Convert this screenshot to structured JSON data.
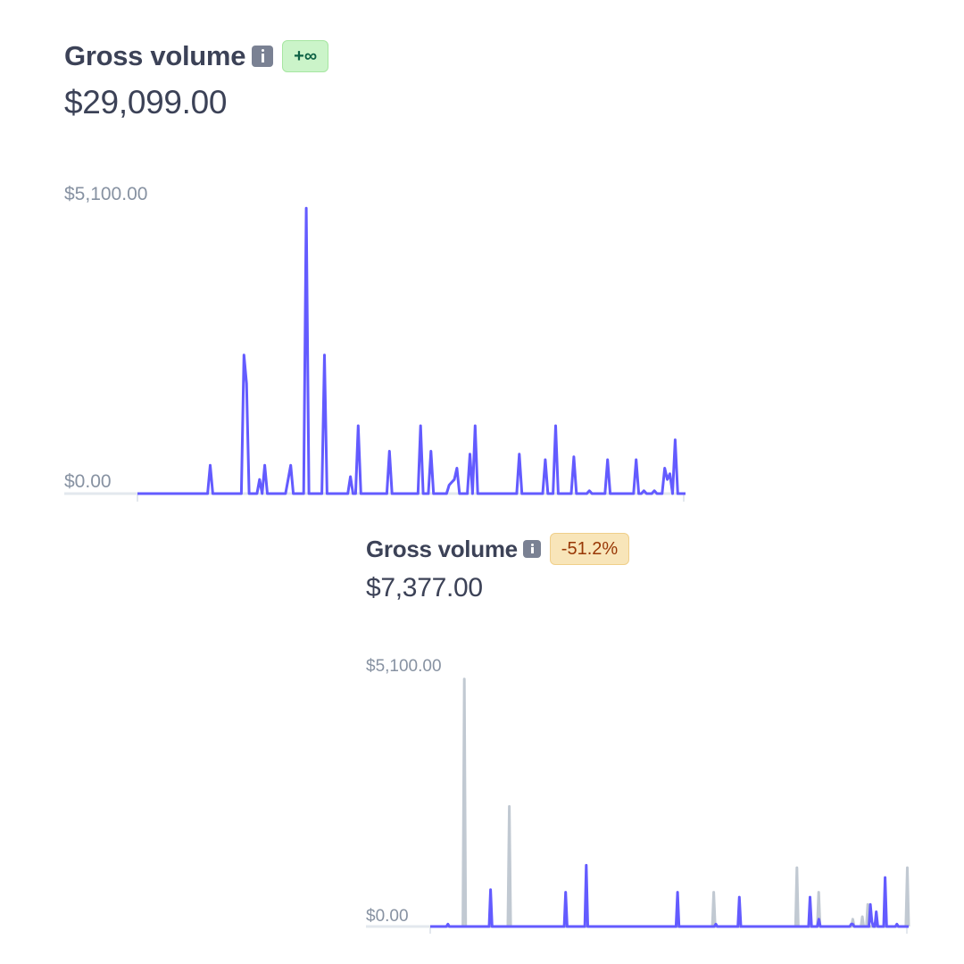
{
  "charts": [
    {
      "title": "Gross volume",
      "badge": "+∞",
      "amount": "$29,099.00",
      "y_max_label": "$5,100.00",
      "y_min_label": "$0.00"
    },
    {
      "title": "Gross volume",
      "badge": "-51.2%",
      "amount": "$7,377.00",
      "y_max_label": "$5,100.00",
      "y_min_label": "$0.00"
    }
  ],
  "colors": {
    "current": "#635bff",
    "previous": "#c1c9d2",
    "axis": "#e3e8ee"
  },
  "chart_data": [
    {
      "type": "line",
      "ylim": [
        0,
        5100
      ],
      "yticks": [
        "$0.00",
        "$5,100.00"
      ],
      "grid": false,
      "series": [
        {
          "values": [
            0,
            0,
            0,
            0,
            0,
            0,
            0,
            0,
            0,
            0,
            0,
            0,
            0,
            0,
            0,
            0,
            0,
            0,
            0,
            0,
            0,
            0,
            0,
            0,
            0,
            0,
            0,
            0,
            500,
            0,
            0,
            0,
            0,
            0,
            0,
            0,
            0,
            0,
            0,
            0,
            0,
            2450,
            1950,
            0,
            0,
            0,
            0,
            250,
            0,
            500,
            0,
            0,
            0,
            0,
            0,
            0,
            0,
            0,
            250,
            500,
            0,
            0,
            0,
            0,
            0,
            5050,
            0,
            0,
            0,
            0,
            0,
            0,
            2450,
            0,
            0,
            0,
            0,
            0,
            0,
            0,
            0,
            0,
            300,
            0,
            0,
            1200,
            0,
            0,
            0,
            0,
            0,
            0,
            0,
            0,
            0,
            0,
            0,
            750,
            0,
            0,
            0,
            0,
            0,
            0,
            0,
            0,
            0,
            0,
            0,
            1200,
            0,
            0,
            0,
            750,
            0,
            0,
            0,
            0,
            0,
            0,
            150,
            200,
            250,
            450,
            0,
            0,
            0,
            0,
            700,
            0,
            1200,
            0,
            0,
            0,
            0,
            0,
            0,
            0,
            0,
            0,
            0,
            0,
            0,
            0,
            0,
            0,
            0,
            700,
            0,
            0,
            0,
            0,
            0,
            0,
            0,
            0,
            0,
            600,
            0,
            0,
            0,
            1200,
            0,
            0,
            0,
            0,
            0,
            0,
            650,
            0,
            0,
            0,
            0,
            0,
            50,
            0,
            0,
            0,
            0,
            0,
            0,
            600,
            0,
            0,
            0,
            0,
            0,
            0,
            0,
            0,
            0,
            0,
            600,
            0,
            0,
            50,
            0,
            0,
            0,
            50,
            0,
            0,
            0,
            450,
            250,
            350,
            0,
            950,
            0,
            0,
            0,
            0
          ]
        }
      ]
    },
    {
      "type": "line",
      "ylim": [
        0,
        5100
      ],
      "yticks": [
        "$0.00",
        "$5,100.00"
      ],
      "grid": false,
      "series": [
        {
          "values": [
            0,
            0,
            0,
            0,
            0,
            0,
            0,
            0,
            0,
            0,
            0,
            0,
            50,
            0,
            0,
            0,
            0,
            0,
            0,
            0,
            0,
            0,
            0,
            0,
            0,
            0,
            0,
            0,
            0,
            0,
            0,
            0,
            0,
            0,
            0,
            0,
            0,
            0,
            0,
            0,
            0,
            750,
            0,
            0,
            0,
            0,
            0,
            0,
            0,
            0,
            0,
            0,
            0,
            0,
            0,
            0,
            0,
            0,
            0,
            0,
            0,
            0,
            0,
            0,
            0,
            0,
            0,
            0,
            0,
            0,
            0,
            0,
            0,
            0,
            0,
            0,
            0,
            0,
            0,
            0,
            0,
            0,
            0,
            0,
            0,
            0,
            0,
            0,
            0,
            0,
            0,
            0,
            700,
            0,
            0,
            0,
            0,
            0,
            0,
            0,
            0,
            0,
            0,
            0,
            0,
            0,
            1250,
            0,
            0,
            0,
            0,
            0,
            0,
            0,
            0,
            0,
            0,
            0,
            0,
            0,
            0,
            0,
            0,
            0,
            0,
            0,
            0,
            0,
            0,
            0,
            0,
            0,
            0,
            0,
            0,
            0,
            0,
            0,
            0,
            0,
            0,
            0,
            0,
            0,
            0,
            0,
            0,
            0,
            0,
            0,
            0,
            0,
            0,
            0,
            0,
            0,
            0,
            0,
            0,
            0,
            0,
            0,
            0,
            0,
            0,
            0,
            0,
            0,
            700,
            0,
            0,
            0,
            0,
            0,
            0,
            0,
            0,
            0,
            0,
            0,
            0,
            0,
            0,
            0,
            0,
            0,
            0,
            0,
            0,
            0,
            0,
            0,
            0,
            0,
            50,
            0,
            0,
            0,
            0,
            0,
            0,
            0,
            0,
            0,
            0,
            0,
            0,
            0,
            0,
            0,
            600,
            0,
            0,
            0,
            0,
            0,
            0,
            0,
            0,
            0,
            0,
            0,
            0,
            0,
            0,
            0,
            0,
            0,
            0,
            0,
            0,
            0,
            0,
            0,
            0,
            0,
            0,
            0,
            0,
            0,
            0,
            0,
            0,
            0,
            0,
            0,
            0,
            0,
            0,
            0,
            0,
            0,
            0,
            0,
            0,
            0,
            0,
            0,
            600,
            0,
            0,
            0,
            0,
            0,
            150,
            0,
            0,
            0,
            0,
            0,
            0,
            0,
            0,
            0,
            0,
            0,
            0,
            0,
            0,
            0,
            0,
            0,
            0,
            0,
            0,
            0,
            50,
            50,
            0,
            0,
            0,
            0,
            0,
            0,
            0,
            0,
            0,
            0,
            0,
            450,
            100,
            0,
            0,
            300,
            0,
            0,
            0,
            0,
            0,
            1000,
            0,
            0,
            0,
            0,
            0,
            0,
            0,
            50,
            0,
            0,
            0,
            0,
            0,
            0,
            0,
            0
          ]
        },
        {
          "values": [
            0,
            0,
            0,
            0,
            0,
            0,
            0,
            0,
            0,
            0,
            0,
            0,
            0,
            0,
            0,
            0,
            0,
            0,
            0,
            0,
            0,
            0,
            0,
            0,
            0,
            5050,
            0,
            0,
            0,
            0,
            0,
            0,
            0,
            0,
            0,
            0,
            0,
            0,
            0,
            0,
            0,
            0,
            0,
            0,
            0,
            0,
            0,
            0,
            0,
            0,
            0,
            0,
            0,
            0,
            0,
            0,
            0,
            0,
            2450,
            0,
            0,
            0,
            0,
            0,
            0,
            0,
            0,
            0,
            0,
            0,
            0,
            0,
            0,
            0,
            0,
            0,
            0,
            0,
            0,
            0,
            0,
            0,
            0,
            0,
            0,
            0,
            0,
            0,
            0,
            0,
            0,
            0,
            0,
            0,
            0,
            0,
            0,
            0,
            0,
            0,
            0,
            0,
            0,
            0,
            0,
            0,
            0,
            0,
            0,
            0,
            0,
            0,
            0,
            0,
            0,
            0,
            0,
            0,
            0,
            0,
            0,
            0,
            0,
            0,
            0,
            0,
            0,
            0,
            0,
            0,
            0,
            0,
            0,
            0,
            0,
            0,
            0,
            0,
            0,
            0,
            0,
            0,
            0,
            0,
            0,
            0,
            0,
            0,
            0,
            0,
            0,
            0,
            0,
            0,
            0,
            0,
            0,
            0,
            0,
            0,
            0,
            0,
            0,
            0,
            0,
            0,
            0,
            0,
            0,
            0,
            0,
            0,
            0,
            0,
            0,
            0,
            0,
            0,
            0,
            0,
            0,
            0,
            0,
            0,
            0,
            0,
            0,
            0,
            0,
            0,
            0,
            0,
            0,
            0,
            0,
            0,
            0,
            0,
            0,
            0,
            0,
            0,
            0,
            0,
            0,
            0,
            0,
            0,
            700,
            0,
            0,
            0,
            0,
            0,
            0,
            0,
            0,
            0,
            0,
            0,
            0,
            0,
            0,
            0,
            0,
            0,
            0,
            0,
            0,
            0,
            0,
            0,
            0,
            0,
            0,
            0,
            0,
            0,
            0,
            0,
            0,
            0,
            0,
            0,
            0,
            0,
            0,
            0,
            0,
            0,
            0,
            0,
            0,
            0,
            0,
            0,
            0,
            0,
            0,
            0,
            0,
            0,
            0,
            0,
            0,
            0,
            0,
            0,
            0,
            1200,
            0,
            0,
            0,
            0,
            0,
            0,
            0,
            0,
            0,
            0,
            0,
            0,
            0,
            0,
            0,
            700,
            0,
            0,
            0,
            0,
            0,
            0,
            0,
            0,
            0,
            0,
            0,
            0,
            0,
            0,
            0,
            0,
            0,
            0,
            0,
            0,
            0,
            0,
            0,
            0,
            150,
            0,
            0,
            0,
            0,
            0,
            0,
            200,
            0,
            0,
            0,
            450,
            0,
            0,
            0,
            0,
            0,
            0,
            0,
            0,
            0,
            0,
            0,
            0,
            0,
            0,
            0,
            0,
            0,
            0,
            0,
            0,
            0,
            0,
            0,
            0,
            0,
            0,
            0,
            0,
            1200,
            0
          ]
        }
      ]
    }
  ]
}
